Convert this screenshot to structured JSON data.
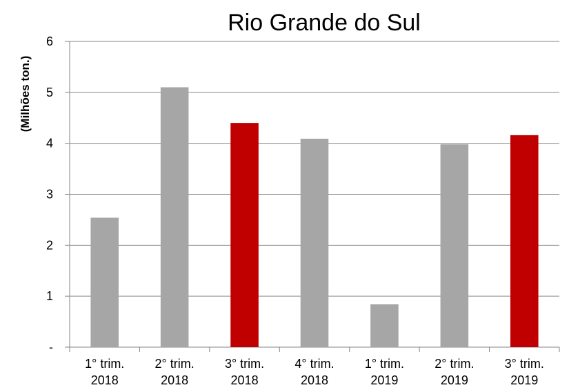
{
  "chart_data": {
    "type": "bar",
    "title": "Rio Grande do Sul",
    "ylabel": "(Milhões ton.)",
    "xlabel": "",
    "ylim": [
      0,
      6
    ],
    "yticks": [
      {
        "value": 0,
        "label": "-"
      },
      {
        "value": 1,
        "label": "1"
      },
      {
        "value": 2,
        "label": "2"
      },
      {
        "value": 3,
        "label": "3"
      },
      {
        "value": 4,
        "label": "4"
      },
      {
        "value": 5,
        "label": "5"
      },
      {
        "value": 6,
        "label": "6"
      }
    ],
    "categories": [
      [
        "1° trim.",
        "2018"
      ],
      [
        "2° trim.",
        "2018"
      ],
      [
        "3° trim.",
        "2018"
      ],
      [
        "4° trim.",
        "2018"
      ],
      [
        "1° trim.",
        "2019"
      ],
      [
        "2° trim.",
        "2019"
      ],
      [
        "3° trim.",
        "2019"
      ]
    ],
    "values": [
      2.54,
      5.1,
      4.4,
      4.09,
      0.84,
      3.98,
      4.16
    ],
    "highlighted": [
      false,
      false,
      true,
      false,
      false,
      false,
      true
    ],
    "grid": true,
    "legend": "none"
  },
  "colors": {
    "bar": "#a6a6a6",
    "highlight": "#c00000"
  }
}
